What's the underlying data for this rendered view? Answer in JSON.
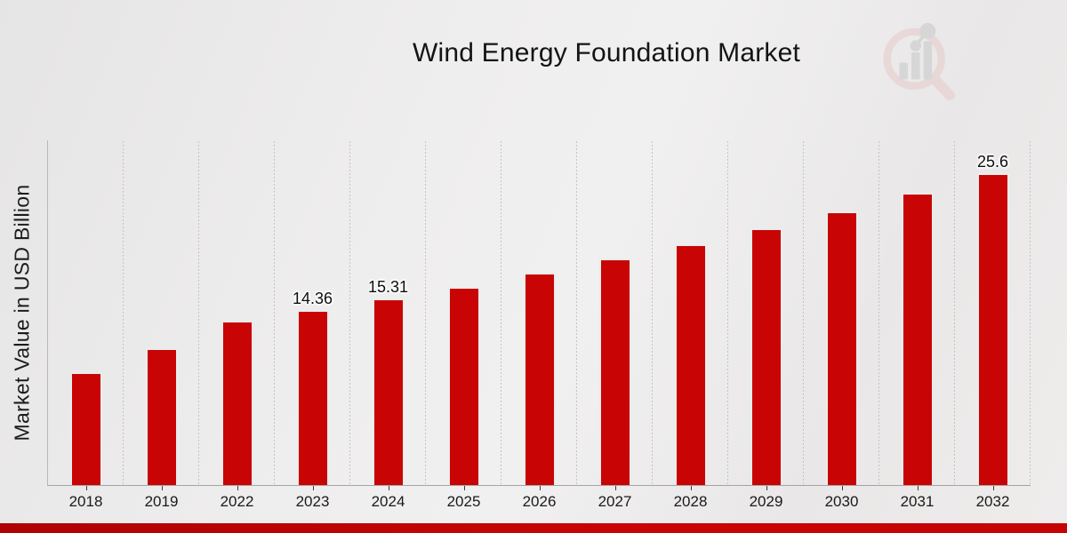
{
  "title": "Wind Energy Foundation Market",
  "y_axis_label": "Market Value in USD Billion",
  "colors": {
    "bar": "#c80404",
    "bar_edge": "#ececeb",
    "footer_accent": "#c00303",
    "gridline": "#c5c4c4",
    "background": "#ededec"
  },
  "logo": {
    "name": "magnifier-bar-chart-logo"
  },
  "chart_data": {
    "type": "bar",
    "title": "Wind Energy Foundation Market",
    "xlabel": "",
    "ylabel": "Market Value in USD Billion",
    "categories": [
      "2018",
      "2019",
      "2022",
      "2023",
      "2024",
      "2025",
      "2026",
      "2027",
      "2028",
      "2029",
      "2030",
      "2031",
      "2032"
    ],
    "values": [
      9.3,
      11.2,
      13.5,
      14.36,
      15.31,
      16.3,
      17.4,
      18.6,
      19.8,
      21.1,
      22.5,
      24.0,
      25.6
    ],
    "value_labels": [
      "",
      "",
      "",
      "14.36",
      "15.31",
      "",
      "",
      "",
      "",
      "",
      "",
      "",
      "25.6"
    ],
    "ylim": [
      0,
      28.3
    ],
    "y_ticks_shown": false,
    "grid": "vertical-dotted",
    "legend": "none",
    "bar_color": "#c80404"
  }
}
